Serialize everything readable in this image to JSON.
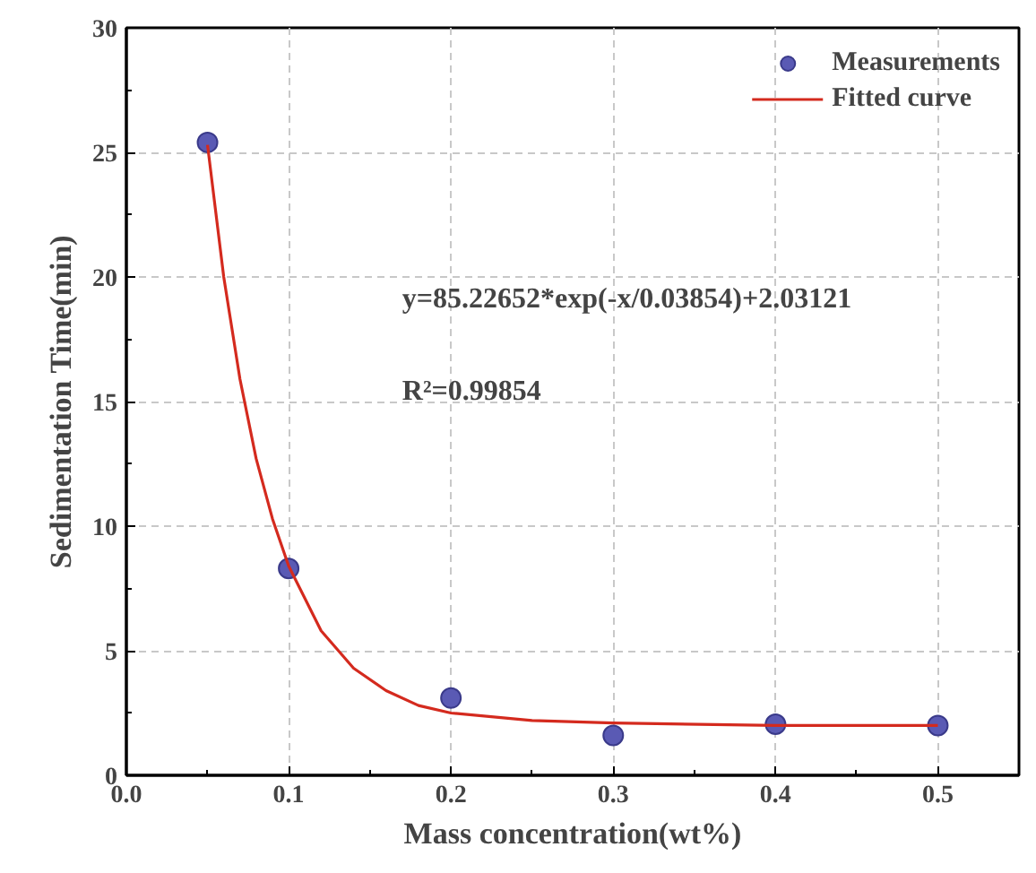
{
  "chart_data": {
    "type": "scatter",
    "xlabel": "Mass concentration(wt%)",
    "ylabel": "Sedimentation Time(min)",
    "annotations": [
      "y=85.22652*exp(-x/0.03854)+2.03121",
      "R²=0.99854"
    ],
    "series": [
      {
        "name": "Measurements",
        "color": "#5a5ab4",
        "marker": "circle",
        "x": [
          0.05,
          0.1,
          0.2,
          0.3,
          0.4,
          0.5
        ],
        "values": [
          25.4,
          8.3,
          3.1,
          1.6,
          2.05,
          2.0
        ]
      },
      {
        "name": "Fitted curve",
        "type": "line",
        "color": "#d42a1e",
        "marker": "none",
        "line_style": "solid",
        "x": [
          0.05,
          0.06,
          0.07,
          0.08,
          0.09,
          0.1,
          0.12,
          0.14,
          0.16,
          0.18,
          0.2,
          0.25,
          0.3,
          0.4,
          0.5
        ],
        "values": [
          25.3,
          20.0,
          15.9,
          12.7,
          10.3,
          8.4,
          5.8,
          4.3,
          3.4,
          2.8,
          2.5,
          2.2,
          2.1,
          2.0,
          2.0
        ]
      }
    ],
    "xlim": [
      0,
      0.55
    ],
    "ylim": [
      0,
      30
    ],
    "xticks": [
      {
        "value": 0,
        "label": "0.0"
      },
      0.1,
      0.2,
      0.3,
      0.4,
      0.5
    ],
    "yticks": [
      0,
      5,
      10,
      15,
      20,
      25,
      30
    ],
    "grid": true,
    "legend": "top right"
  }
}
